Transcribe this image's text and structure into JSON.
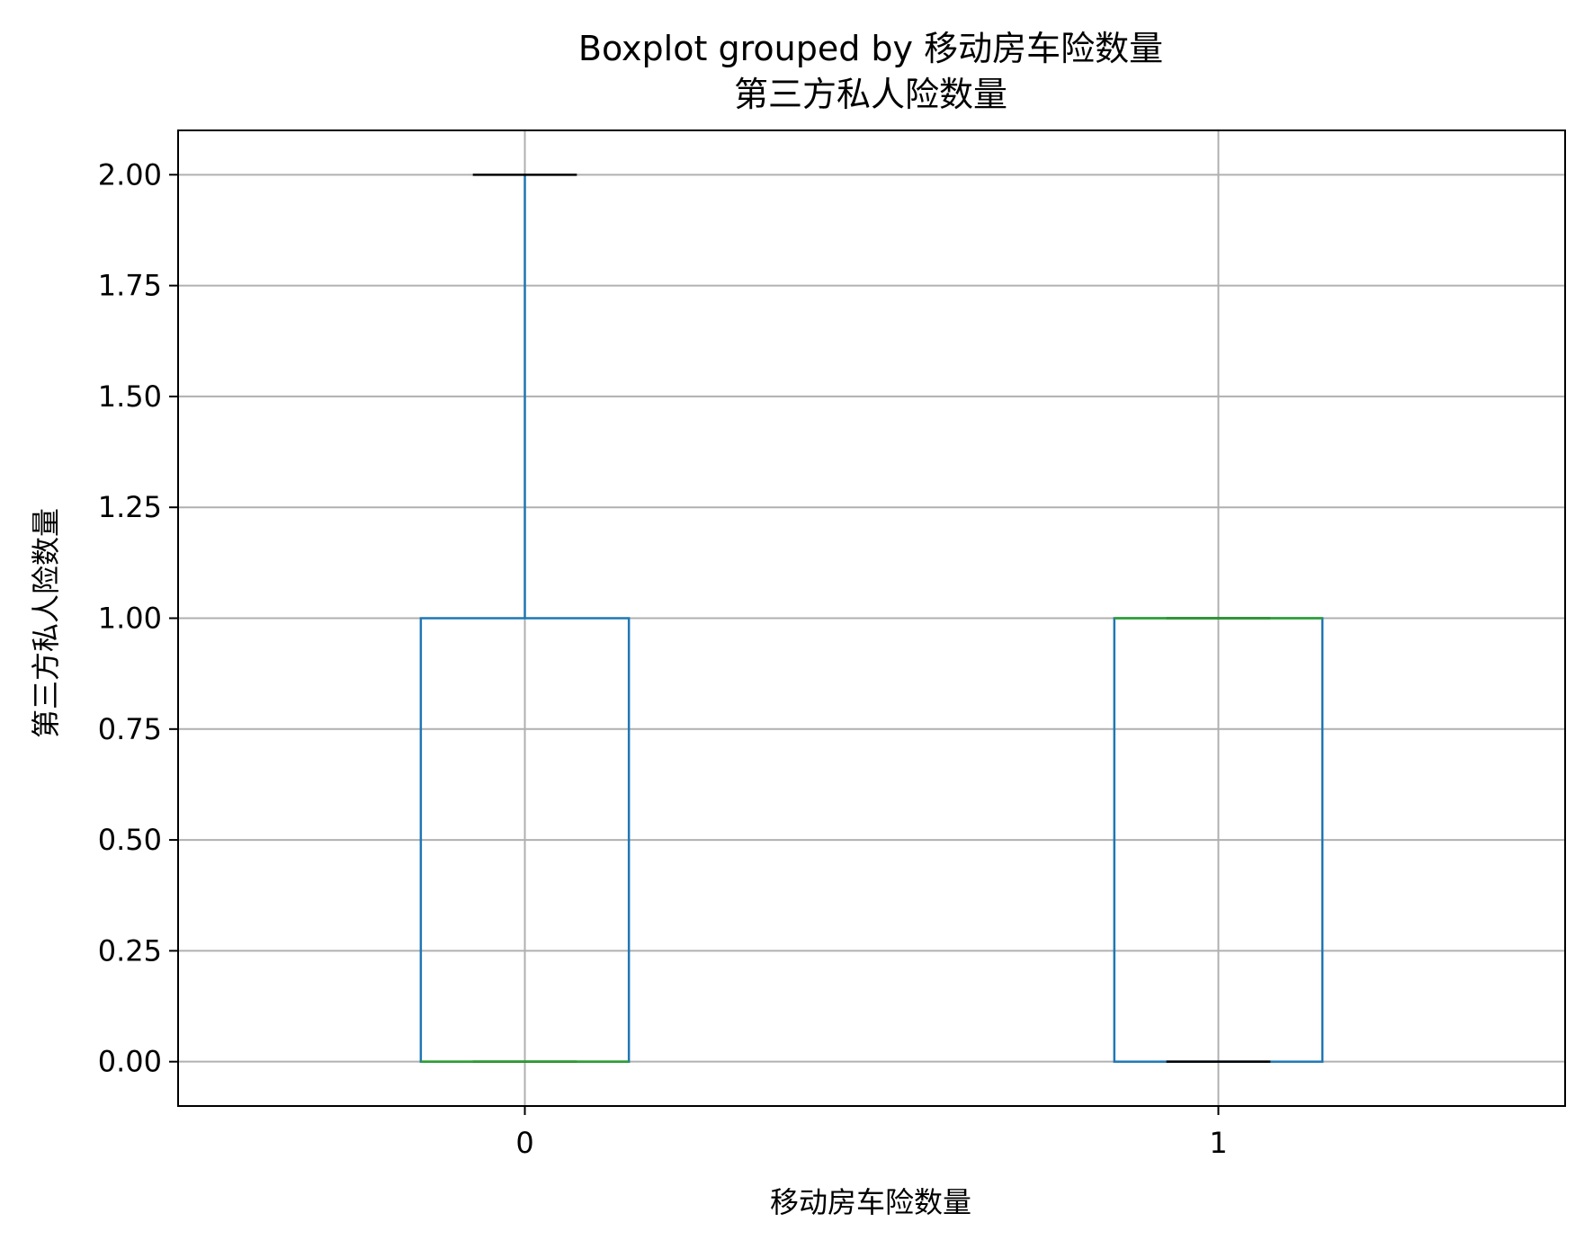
{
  "chart_data": {
    "type": "boxplot",
    "title": "Boxplot grouped by 移动房车险数量",
    "subtitle": "第三方私人险数量",
    "xlabel": "移动房车险数量",
    "ylabel": "第三方私人险数量",
    "categories": [
      "0",
      "1"
    ],
    "ylim": [
      -0.1,
      2.1
    ],
    "yticks": [
      0.0,
      0.25,
      0.5,
      0.75,
      1.0,
      1.25,
      1.5,
      1.75,
      2.0
    ],
    "ytick_labels": [
      "0.00",
      "0.25",
      "0.50",
      "0.75",
      "1.00",
      "1.25",
      "1.50",
      "1.75",
      "2.00"
    ],
    "grid": true,
    "boxes": [
      {
        "category": "0",
        "whislo": 0,
        "q1": 0,
        "median": 0,
        "q3": 1,
        "whishi": 2
      },
      {
        "category": "1",
        "whislo": 0,
        "q1": 0,
        "median": 1,
        "q3": 1,
        "whishi": 1
      }
    ],
    "colors": {
      "box": "#1f77b4",
      "median": "#2ca02c",
      "cap": "#000000"
    }
  }
}
